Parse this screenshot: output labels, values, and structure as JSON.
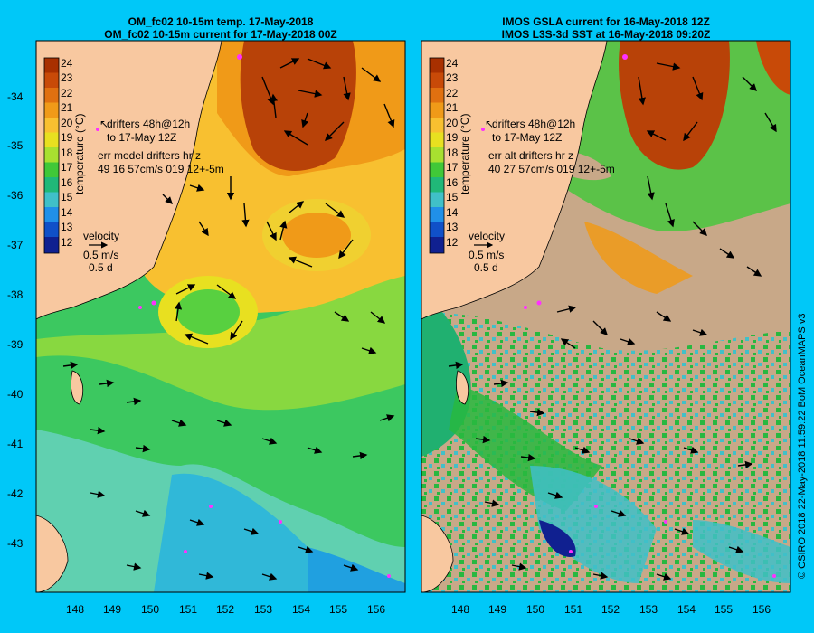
{
  "left_panel": {
    "title_line1": "OM_fc02 10-15m temp. 17-May-2018",
    "title_line2": "OM_fc02 10-15m current for 17-May-2018 00Z",
    "legend_drifters_line1": "drifters 48h@12h",
    "legend_drifters_line2": "to 17-May 12Z",
    "legend_err_line1": "err model drifters hr z",
    "legend_err_line2": "49 16 57cm/s 019 12+-5m",
    "velocity_label": "velocity",
    "velocity_speed": "0.5 m/s",
    "velocity_time": "0.5 d"
  },
  "right_panel": {
    "title_line1": "IMOS GSLA current for 16-May-2018 12Z",
    "title_line2": "IMOS L3S-3d SST at 16-May-2018 09:20Z",
    "legend_drifters_line1": "drifters 48h@12h",
    "legend_drifters_line2": "to 17-May 12Z",
    "legend_err_line1": "err alt drifters hr z",
    "legend_err_line2": "40 27 57cm/s 019 12+-5m",
    "velocity_label": "velocity",
    "velocity_speed": "0.5 m/s",
    "velocity_time": "0.5 d"
  },
  "colorbar": {
    "label": "temperature (°C)",
    "ticks": [
      "24",
      "23",
      "22",
      "21",
      "20",
      "19",
      "18",
      "17",
      "16",
      "15",
      "14",
      "13",
      "12"
    ],
    "colors": [
      "#a83000",
      "#c84a08",
      "#e07010",
      "#f09a18",
      "#f8c030",
      "#e8e020",
      "#a8e030",
      "#40c838",
      "#20b878",
      "#40c0c8",
      "#2090e8",
      "#1050c8",
      "#102090"
    ]
  },
  "latitude_ticks": [
    "-34",
    "-35",
    "-36",
    "-37",
    "-38",
    "-39",
    "-40",
    "-41",
    "-42",
    "-43"
  ],
  "longitude_ticks": [
    "148",
    "149",
    "150",
    "151",
    "152",
    "153",
    "154",
    "155",
    "156"
  ],
  "credit": "© CSIRO 2018   22-May-2018 11:59:22 BoM OceanMAPS v3"
}
